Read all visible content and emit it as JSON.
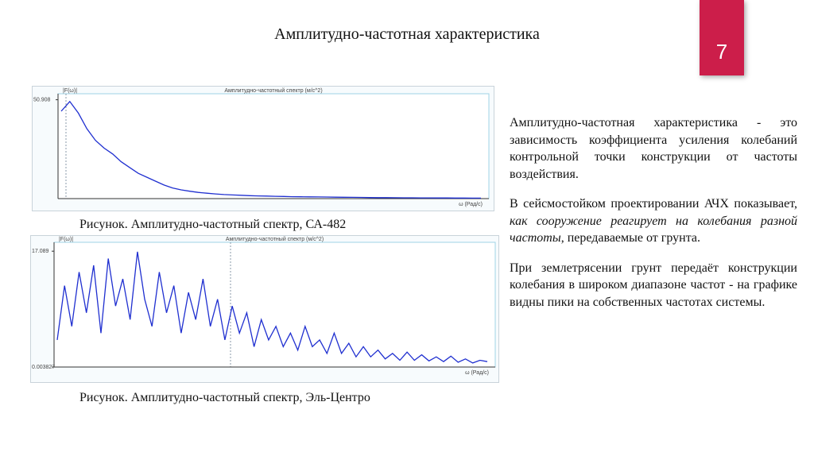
{
  "header": {
    "title": "Амплитудно-частотная характеристика",
    "page_number": "7"
  },
  "figures": [
    {
      "type": "line",
      "panel_title": "Амплитудно-частотный спектр (м/с^2)",
      "y_label": "|F(ω)|",
      "x_label": "ω (Рад/с)",
      "ylim": [
        0,
        54
      ],
      "yticks": [
        50.908
      ],
      "color": "#1f2fd0",
      "values": [
        45,
        50,
        44,
        36,
        30,
        26,
        23,
        19,
        16,
        13,
        11,
        9,
        7,
        5.5,
        4.5,
        3.8,
        3.2,
        2.8,
        2.4,
        2.1,
        1.9,
        1.7,
        1.5,
        1.4,
        1.3,
        1.2,
        1.1,
        1,
        0.95,
        0.9,
        0.85,
        0.8,
        0.75,
        0.7,
        0.65,
        0.6,
        0.55,
        0.5,
        0.48,
        0.45,
        0.42,
        0.4,
        0.38,
        0.36,
        0.34,
        0.32,
        0.3,
        0.28,
        0.26,
        0.25
      ],
      "caption": "Рисунок. Амплитудно-частотный спектр, СА-482"
    },
    {
      "type": "line",
      "panel_title": "Амплитудно-частотный спектр (м/с^2)",
      "y_label": "|F(ω)|",
      "x_label": "ω (Рад/с)",
      "ylim": [
        0,
        18.4
      ],
      "yticks": [
        0.003827,
        17.089
      ],
      "color": "#1f2fd0",
      "values": [
        4,
        12,
        6,
        14,
        8,
        15,
        5,
        16,
        9,
        13,
        7,
        17,
        10,
        6,
        14,
        8,
        12,
        5,
        11,
        7,
        13,
        6,
        10,
        4,
        9,
        5,
        8,
        3,
        7,
        4,
        6,
        3,
        5,
        2.5,
        6,
        3,
        4,
        2,
        5,
        2,
        3.5,
        1.5,
        3,
        1.5,
        2.5,
        1.2,
        2,
        1,
        2.2,
        1,
        1.8,
        0.9,
        1.5,
        0.8,
        1.6,
        0.7,
        1.2,
        0.6,
        1,
        0.8
      ],
      "caption": "Рисунок. Амплитудно-частотный спектр, Эль-Центро"
    }
  ],
  "text": {
    "paragraphs": [
      [
        "Амплитудно-частотная характеристика - это зависимость коэффициента усиления колебаний контрольной точки конструкции от частоты воздействия."
      ],
      [
        "В сейсмостойком проектировании АЧХ показывает, ",
        "как сооружение реагирует на колебания разной частоты",
        ", передаваемые от грунта."
      ],
      [
        "При землетрясении грунт передаёт конструкции колебания в широком диапазоне частот - на графике видны пики на собственных частотах системы."
      ]
    ]
  }
}
